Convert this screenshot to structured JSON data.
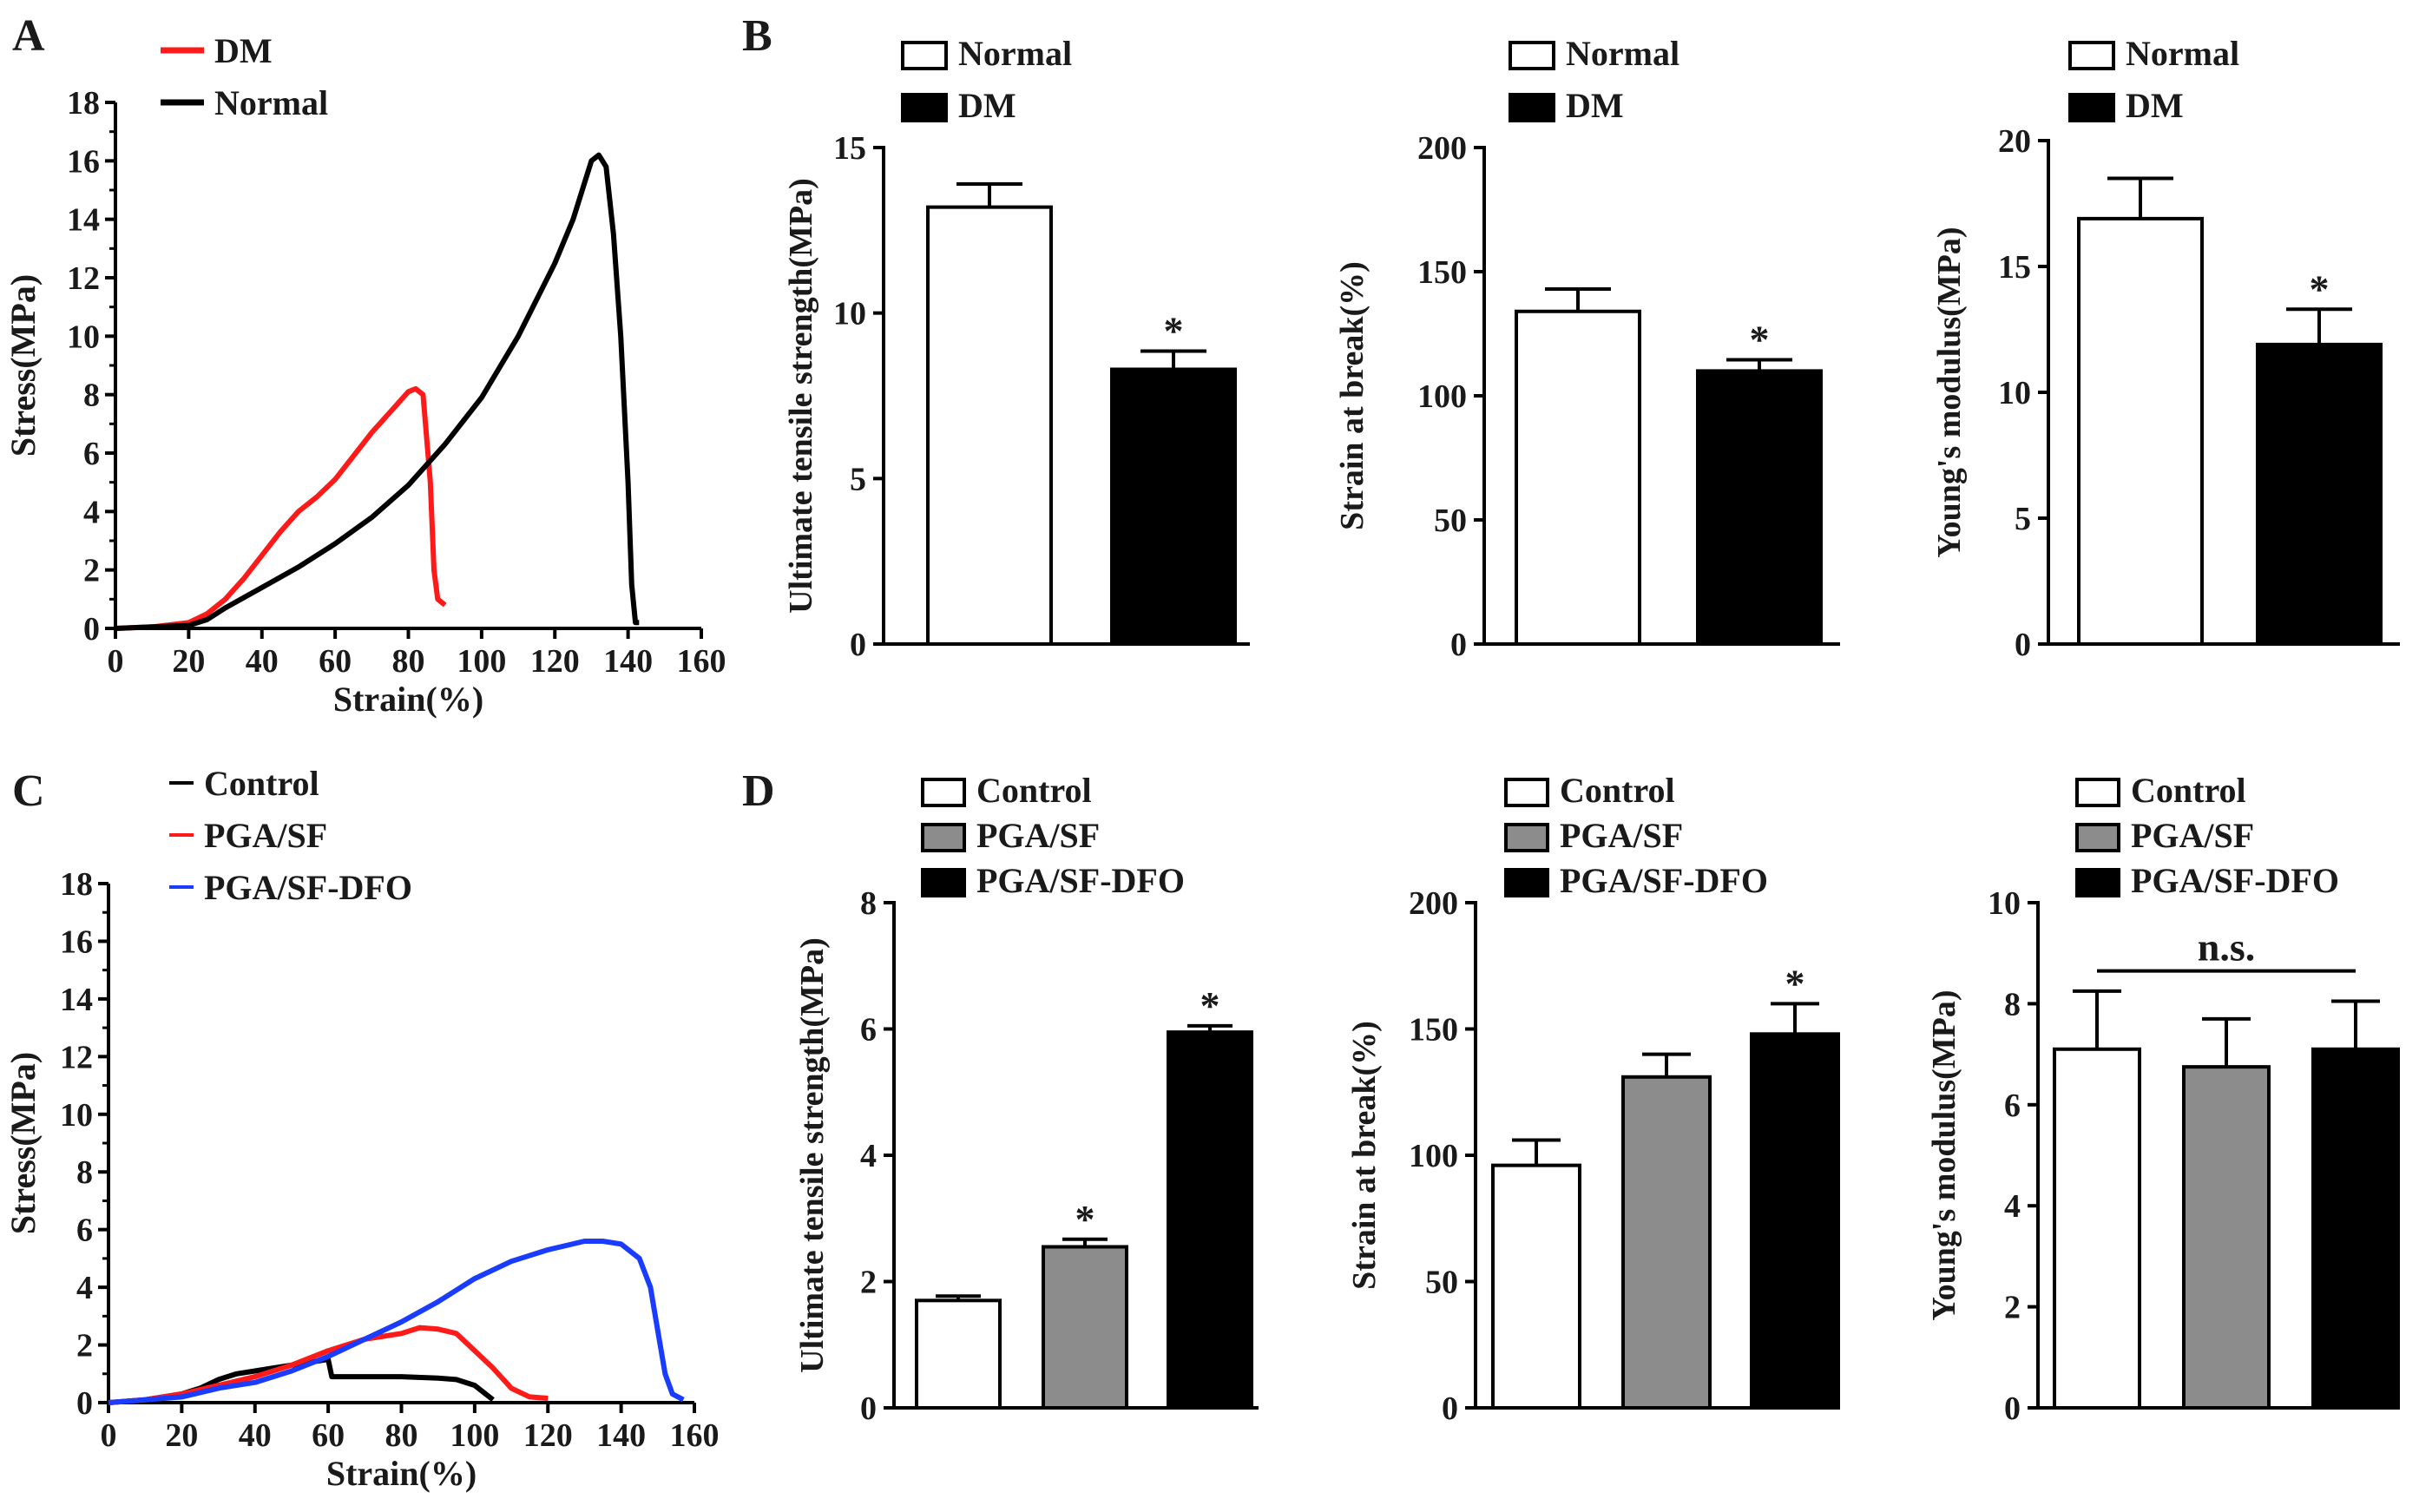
{
  "panel_labels": {
    "a": "A",
    "b": "B",
    "c": "C",
    "d": "D"
  },
  "colors": {
    "dm": "#ff1a1a",
    "normal": "#000000",
    "control": "#000000",
    "pga_sf": "#ff1a1a",
    "pga_sf_dfo": "#1a3cff",
    "bar_gray": "#8c8c8c",
    "bar_black": "#000000",
    "bar_white": "#ffffff"
  },
  "chart_data": [
    {
      "id": "A",
      "type": "line",
      "xlabel": "Strain(%)",
      "ylabel": "Stress(MPa)",
      "xlim": [
        0,
        160
      ],
      "ylim": [
        0,
        18
      ],
      "xticks": [
        0,
        20,
        40,
        60,
        80,
        100,
        120,
        140,
        160
      ],
      "yticks": [
        0,
        2,
        4,
        6,
        8,
        10,
        12,
        14,
        16,
        18
      ],
      "legend_position": "top-left",
      "series": [
        {
          "name": "DM",
          "color": "#ff1a1a",
          "points": [
            [
              0,
              0
            ],
            [
              10,
              0.05
            ],
            [
              20,
              0.2
            ],
            [
              25,
              0.5
            ],
            [
              30,
              1.0
            ],
            [
              35,
              1.7
            ],
            [
              40,
              2.5
            ],
            [
              45,
              3.3
            ],
            [
              50,
              4.0
            ],
            [
              55,
              4.5
            ],
            [
              60,
              5.1
            ],
            [
              65,
              5.9
            ],
            [
              70,
              6.7
            ],
            [
              75,
              7.4
            ],
            [
              80,
              8.1
            ],
            [
              82,
              8.2
            ],
            [
              84,
              8.0
            ],
            [
              86,
              5.0
            ],
            [
              87,
              2.0
            ],
            [
              88,
              1.0
            ],
            [
              90,
              0.8
            ]
          ]
        },
        {
          "name": "Normal",
          "color": "#000000",
          "points": [
            [
              0,
              0
            ],
            [
              10,
              0.05
            ],
            [
              20,
              0.1
            ],
            [
              25,
              0.3
            ],
            [
              30,
              0.7
            ],
            [
              40,
              1.4
            ],
            [
              50,
              2.1
            ],
            [
              60,
              2.9
            ],
            [
              70,
              3.8
            ],
            [
              80,
              4.9
            ],
            [
              90,
              6.3
            ],
            [
              100,
              7.9
            ],
            [
              110,
              10.0
            ],
            [
              120,
              12.5
            ],
            [
              125,
              14.0
            ],
            [
              130,
              16.0
            ],
            [
              132,
              16.2
            ],
            [
              134,
              15.8
            ],
            [
              136,
              13.5
            ],
            [
              138,
              10.0
            ],
            [
              140,
              5.0
            ],
            [
              141,
              1.5
            ],
            [
              142,
              0.2
            ],
            [
              143,
              0.2
            ]
          ]
        }
      ]
    },
    {
      "id": "B1",
      "type": "bar",
      "ylabel": "Ultimate tensile  strength(MPa)",
      "ylim": [
        0,
        15
      ],
      "yticks": [
        0,
        5,
        10,
        15
      ],
      "legend_position": "top-left",
      "series": [
        {
          "name": "Normal",
          "value": 13.2,
          "error": 0.7,
          "sig": ""
        },
        {
          "name": "DM",
          "value": 8.3,
          "error": 0.55,
          "sig": "*"
        }
      ]
    },
    {
      "id": "B2",
      "type": "bar",
      "ylabel": "Strain at break(%)",
      "ylim": [
        0,
        200
      ],
      "yticks": [
        0,
        50,
        100,
        150,
        200
      ],
      "legend_position": "top-left",
      "series": [
        {
          "name": "Normal",
          "value": 134,
          "error": 9,
          "sig": ""
        },
        {
          "name": "DM",
          "value": 110,
          "error": 4.5,
          "sig": "*"
        }
      ]
    },
    {
      "id": "B3",
      "type": "bar",
      "ylabel": "Young's modulus(MPa)",
      "ylim": [
        0,
        20
      ],
      "yticks": [
        0,
        5,
        10,
        15,
        20
      ],
      "legend_position": "top-left",
      "series": [
        {
          "name": "Normal",
          "value": 16.9,
          "error": 1.6,
          "sig": ""
        },
        {
          "name": "DM",
          "value": 11.9,
          "error": 1.4,
          "sig": "*"
        }
      ]
    },
    {
      "id": "C",
      "type": "line",
      "xlabel": "Strain(%)",
      "ylabel": "Stress(MPa)",
      "xlim": [
        0,
        160
      ],
      "ylim": [
        0,
        18
      ],
      "xticks": [
        0,
        20,
        40,
        60,
        80,
        100,
        120,
        140,
        160
      ],
      "yticks": [
        0,
        2,
        4,
        6,
        8,
        10,
        12,
        14,
        16,
        18
      ],
      "legend_position": "top-left",
      "series": [
        {
          "name": "Control",
          "color": "#000000",
          "points": [
            [
              0,
              0
            ],
            [
              10,
              0.1
            ],
            [
              20,
              0.3
            ],
            [
              25,
              0.5
            ],
            [
              30,
              0.8
            ],
            [
              35,
              1.0
            ],
            [
              40,
              1.1
            ],
            [
              45,
              1.2
            ],
            [
              50,
              1.3
            ],
            [
              55,
              1.4
            ],
            [
              60,
              1.5
            ],
            [
              61,
              0.9
            ],
            [
              70,
              0.9
            ],
            [
              80,
              0.9
            ],
            [
              90,
              0.85
            ],
            [
              95,
              0.8
            ],
            [
              100,
              0.6
            ],
            [
              103,
              0.3
            ],
            [
              105,
              0.1
            ]
          ]
        },
        {
          "name": "PGA/SF",
          "color": "#ff1a1a",
          "points": [
            [
              0,
              0
            ],
            [
              10,
              0.1
            ],
            [
              20,
              0.3
            ],
            [
              30,
              0.6
            ],
            [
              40,
              0.9
            ],
            [
              50,
              1.3
            ],
            [
              60,
              1.8
            ],
            [
              70,
              2.2
            ],
            [
              80,
              2.4
            ],
            [
              85,
              2.6
            ],
            [
              90,
              2.55
            ],
            [
              95,
              2.4
            ],
            [
              100,
              1.8
            ],
            [
              105,
              1.2
            ],
            [
              110,
              0.5
            ],
            [
              115,
              0.2
            ],
            [
              120,
              0.15
            ]
          ]
        },
        {
          "name": "PGA/SF-DFO",
          "color": "#1a3cff",
          "points": [
            [
              0,
              0
            ],
            [
              10,
              0.1
            ],
            [
              20,
              0.2
            ],
            [
              30,
              0.5
            ],
            [
              40,
              0.7
            ],
            [
              50,
              1.1
            ],
            [
              60,
              1.6
            ],
            [
              70,
              2.2
            ],
            [
              80,
              2.8
            ],
            [
              90,
              3.5
            ],
            [
              100,
              4.3
            ],
            [
              110,
              4.9
            ],
            [
              120,
              5.3
            ],
            [
              130,
              5.6
            ],
            [
              135,
              5.6
            ],
            [
              140,
              5.5
            ],
            [
              145,
              5.0
            ],
            [
              148,
              4.0
            ],
            [
              150,
              2.5
            ],
            [
              152,
              1.0
            ],
            [
              154,
              0.3
            ],
            [
              157,
              0.1
            ]
          ]
        }
      ]
    },
    {
      "id": "D1",
      "type": "bar",
      "ylabel": "Ultimate tensile  strength(MPa)",
      "ylim": [
        0,
        8
      ],
      "yticks": [
        0,
        2,
        4,
        6,
        8
      ],
      "legend_position": "top-left",
      "series": [
        {
          "name": "Control",
          "value": 1.7,
          "error": 0.07,
          "sig": ""
        },
        {
          "name": "PGA/SF",
          "value": 2.55,
          "error": 0.12,
          "sig": "*"
        },
        {
          "name": "PGA/SF-DFO",
          "value": 5.95,
          "error": 0.1,
          "sig": "*"
        }
      ]
    },
    {
      "id": "D2",
      "type": "bar",
      "ylabel": "Strain at break(%)",
      "ylim": [
        0,
        200
      ],
      "yticks": [
        0,
        50,
        100,
        150,
        200
      ],
      "legend_position": "top-left",
      "series": [
        {
          "name": "Control",
          "value": 96,
          "error": 10,
          "sig": ""
        },
        {
          "name": "PGA/SF",
          "value": 131,
          "error": 9,
          "sig": ""
        },
        {
          "name": "PGA/SF-DFO",
          "value": 148,
          "error": 12,
          "sig": "*"
        }
      ]
    },
    {
      "id": "D3",
      "type": "bar",
      "ylabel": "Young's modulus(MPa)",
      "ylim": [
        0,
        10
      ],
      "yticks": [
        0,
        2,
        4,
        6,
        8,
        10
      ],
      "legend_position": "top-left",
      "bracket_label": "n.s.",
      "series": [
        {
          "name": "Control",
          "value": 7.1,
          "error": 1.15,
          "sig": ""
        },
        {
          "name": "PGA/SF",
          "value": 6.75,
          "error": 0.95,
          "sig": ""
        },
        {
          "name": "PGA/SF-DFO",
          "value": 7.1,
          "error": 0.95,
          "sig": ""
        }
      ]
    }
  ]
}
